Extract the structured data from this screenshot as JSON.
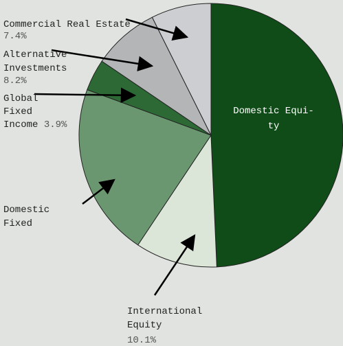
{
  "chart_data": {
    "type": "pie",
    "title": "",
    "slices": [
      {
        "label": "Domestic Equity",
        "label_lines": [
          "Domestic Equi-",
          "ty"
        ],
        "value": 49.6,
        "value_label": "",
        "color": "#0f4c17"
      },
      {
        "label": "International Equity",
        "label_lines": [
          "International",
          "Equity"
        ],
        "value": 10.1,
        "value_label": "10.1%",
        "color": "#dbe5d8"
      },
      {
        "label": "Domestic Fixed",
        "label_lines": [
          "Domestic",
          "Fixed"
        ],
        "value": 21.4,
        "value_label": "",
        "color": "#6a9770"
      },
      {
        "label": "Global Fixed Income",
        "label_lines": [
          "Global",
          "Fixed",
          "Income"
        ],
        "value": 3.9,
        "value_label": "3.9%",
        "color": "#2c6934"
      },
      {
        "label": "Alternative Investments",
        "label_lines": [
          "Alternative",
          "Investments"
        ],
        "value": 8.2,
        "value_label": "8.2%",
        "color": "#b3b5b7"
      },
      {
        "label": "Commercial Real Estate",
        "label_lines": [
          "Commercial Real Estate"
        ],
        "value": 7.4,
        "value_label": "7.4%",
        "color": "#cdced1"
      }
    ],
    "legend": "none",
    "start_angle": "12 o'clock",
    "direction": "clockwise"
  }
}
